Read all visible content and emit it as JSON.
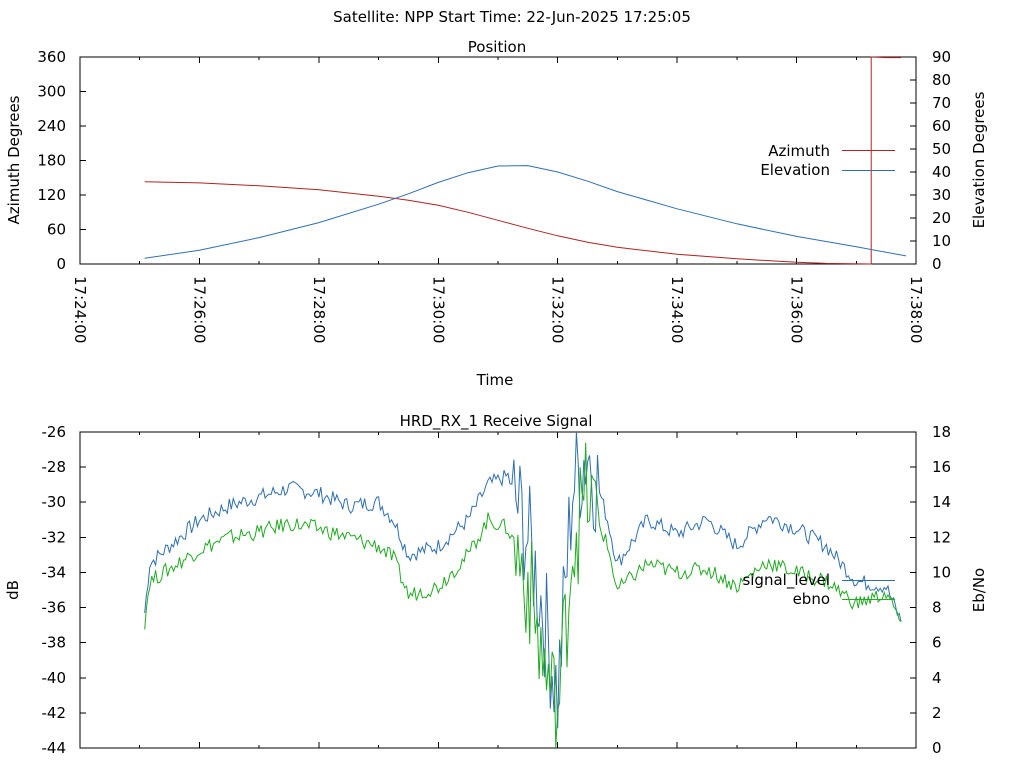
{
  "header": {
    "title": "Satellite: NPP    Start Time: 22-Jun-2025 17:25:05"
  },
  "colors": {
    "azimuth": "#b22222",
    "elevation": "#2f6fb0",
    "signal": "#2f6fb0",
    "ebno": "#22aa22"
  },
  "chart_data": [
    {
      "type": "line",
      "title": "Position",
      "xlabel": "Time",
      "ylabel": "Azimuth Degrees",
      "y2label": "Elevation Degrees",
      "xlim": [
        "17:24:00",
        "17:38:00"
      ],
      "x_ticks": [
        "17:24:00",
        "17:26:00",
        "17:28:00",
        "17:30:00",
        "17:32:00",
        "17:34:00",
        "17:36:00",
        "17:38:00"
      ],
      "ylim": [
        0,
        360
      ],
      "y_ticks": [
        "0",
        "60",
        "120",
        "180",
        "240",
        "300",
        "360"
      ],
      "y2lim": [
        0,
        90
      ],
      "y2_ticks": [
        "0",
        "10",
        "20",
        "30",
        "40",
        "50",
        "60",
        "70",
        "80",
        "90"
      ],
      "legend": "right",
      "series": [
        {
          "name": "Azimuth",
          "axis": "y",
          "x": [
            "17:25:05",
            "17:26:00",
            "17:27:00",
            "17:28:00",
            "17:29:00",
            "17:29:30",
            "17:30:00",
            "17:30:30",
            "17:31:00",
            "17:31:30",
            "17:32:00",
            "17:32:30",
            "17:33:00",
            "17:34:00",
            "17:35:00",
            "17:36:00",
            "17:36:30",
            "17:37:15",
            "17:37:15",
            "17:37:30",
            "17:37:45"
          ],
          "values": [
            143,
            141,
            136,
            129,
            118,
            111,
            102,
            90,
            76,
            62,
            49,
            38,
            29,
            17,
            9,
            3,
            1,
            0,
            360,
            359,
            359
          ]
        },
        {
          "name": "Elevation",
          "axis": "y2",
          "x": [
            "17:25:05",
            "17:26:00",
            "17:27:00",
            "17:28:00",
            "17:29:00",
            "17:29:30",
            "17:30:00",
            "17:30:30",
            "17:31:00",
            "17:31:30",
            "17:32:00",
            "17:32:30",
            "17:33:00",
            "17:34:00",
            "17:35:00",
            "17:36:00",
            "17:37:00",
            "17:37:50"
          ],
          "values": [
            2.5,
            6,
            11.5,
            18,
            26,
            30.5,
            35.5,
            39.7,
            42.6,
            42.8,
            40,
            36,
            31.5,
            24,
            17.5,
            12,
            7.5,
            3.5
          ]
        }
      ]
    },
    {
      "type": "line",
      "title": "HRD_RX_1 Receive Signal",
      "ylabel": "dB",
      "y2label": "Eb/No",
      "xlim": [
        "17:24:00",
        "17:38:00"
      ],
      "ylim": [
        -44,
        -26
      ],
      "y_ticks": [
        "-26",
        "-28",
        "-30",
        "-32",
        "-34",
        "-36",
        "-38",
        "-40",
        "-42",
        "-44"
      ],
      "y2lim": [
        0,
        18
      ],
      "y2_ticks": [
        "18",
        "16",
        "14",
        "12",
        "10",
        "8",
        "6",
        "4",
        "2",
        "0"
      ],
      "legend": "right",
      "series": [
        {
          "name": "signal_level",
          "axis": "y",
          "x": [
            "17:25:05",
            "17:25:10",
            "17:25:30",
            "17:26:00",
            "17:26:30",
            "17:27:00",
            "17:27:30",
            "17:28:00",
            "17:28:30",
            "17:29:00",
            "17:29:15",
            "17:29:30",
            "17:30:00",
            "17:30:30",
            "17:30:50",
            "17:31:10",
            "17:31:30",
            "17:31:45",
            "17:32:00",
            "17:32:15",
            "17:32:30",
            "17:32:50",
            "17:33:00",
            "17:33:30",
            "17:34:00",
            "17:34:30",
            "17:35:00",
            "17:35:30",
            "17:36:00",
            "17:36:30",
            "17:37:00",
            "17:37:30",
            "17:37:45"
          ],
          "values": [
            -36.3,
            -33.5,
            -32.5,
            -31.0,
            -30.2,
            -29.7,
            -29.2,
            -29.5,
            -30.2,
            -30.0,
            -31.0,
            -33.0,
            -32.5,
            -31.0,
            -29.0,
            -28.5,
            -32.0,
            -36.0,
            -41.0,
            -29.0,
            -27.0,
            -31.0,
            -33.5,
            -31.0,
            -31.8,
            -31.0,
            -32.5,
            -30.8,
            -31.5,
            -32.5,
            -34.5,
            -34.8,
            -36.8
          ]
        },
        {
          "name": "ebno",
          "axis": "y2",
          "x": [
            "17:25:05",
            "17:25:10",
            "17:25:30",
            "17:26:00",
            "17:26:30",
            "17:27:00",
            "17:27:30",
            "17:28:00",
            "17:28:30",
            "17:29:00",
            "17:29:15",
            "17:29:30",
            "17:30:00",
            "17:30:30",
            "17:30:50",
            "17:31:10",
            "17:31:30",
            "17:31:45",
            "17:32:00",
            "17:32:15",
            "17:32:30",
            "17:32:50",
            "17:33:00",
            "17:33:30",
            "17:34:00",
            "17:34:30",
            "17:35:00",
            "17:35:30",
            "17:36:00",
            "17:36:30",
            "17:37:00",
            "17:37:30",
            "17:37:45"
          ],
          "values": [
            7.2,
            9.5,
            10.2,
            11.3,
            12.0,
            12.3,
            12.8,
            12.5,
            12.0,
            11.5,
            10.8,
            8.7,
            9.2,
            11.0,
            13.0,
            12.5,
            9.5,
            5.0,
            1.8,
            11.8,
            14.5,
            11.5,
            9.0,
            10.5,
            10.0,
            10.2,
            9.2,
            10.6,
            10.0,
            9.5,
            8.2,
            8.8,
            7.2
          ]
        }
      ]
    }
  ]
}
